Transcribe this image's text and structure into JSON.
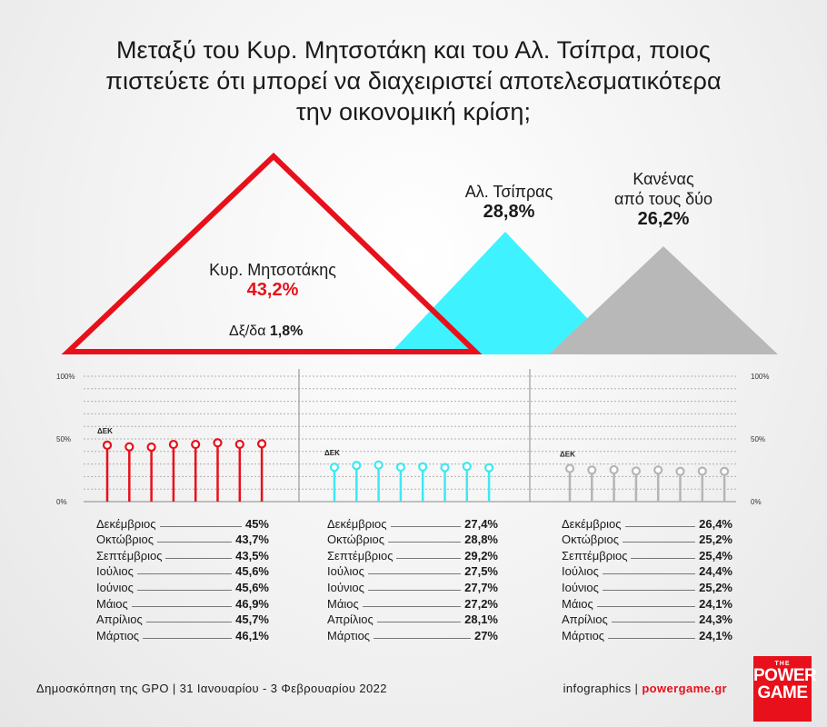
{
  "title_lines": [
    "Μεταξύ του Κυρ. Μητσοτάκη και του Αλ. Τσίπρα, ποιος",
    "πιστεύετε ότι μπορεί να διαχειριστεί αποτελεσματικότερα",
    "την οικονομική κρίση;"
  ],
  "summary": {
    "mitsotakis": {
      "label": "Κυρ. Μητσοτάκης",
      "value": "43,2%"
    },
    "tsipras": {
      "label": "Αλ. Τσίπρας",
      "value": "28,8%"
    },
    "none": {
      "label_line1": "Κανένας",
      "label_line2": "από τους δύο",
      "value": "26,2%"
    },
    "dk": {
      "label": "Δξ/δα",
      "value": "1,8%"
    }
  },
  "chart_data": {
    "type": "bar",
    "subtype": "lollipop-small-multiples",
    "categories": [
      "Δεκέμβριος",
      "Οκτώβριος",
      "Σεπτέμβριος",
      "Ιούλιος",
      "Ιούνιος",
      "Μάιος",
      "Απρίλιος",
      "Μάρτιος"
    ],
    "ylim": [
      0,
      100
    ],
    "y_ticks": [
      "0%",
      "50%",
      "100%"
    ],
    "first_point_label": "ΔΕΚ",
    "series": [
      {
        "color": "#e8101a",
        "values": [
          45,
          43.7,
          43.5,
          45.6,
          45.6,
          46.9,
          45.7,
          46.1
        ],
        "labels": [
          "45%",
          "43,7%",
          "43,5%",
          "45,6%",
          "45,6%",
          "46,9%",
          "45,7%",
          "46,1%"
        ]
      },
      {
        "color": "#3ee8f2",
        "values": [
          27.4,
          28.8,
          29.2,
          27.5,
          27.7,
          27.2,
          28.1,
          27
        ],
        "labels": [
          "27,4%",
          "28,8%",
          "29,2%",
          "27,5%",
          "27,7%",
          "27,2%",
          "28,1%",
          "27%"
        ]
      },
      {
        "color": "#b5b5b5",
        "values": [
          26.4,
          25.2,
          25.4,
          24.4,
          25.2,
          24.1,
          24.3,
          24.1
        ],
        "labels": [
          "26,4%",
          "25,2%",
          "25,4%",
          "24,4%",
          "25,2%",
          "24,1%",
          "24,3%",
          "24,1%"
        ]
      }
    ]
  },
  "footer": {
    "source": "Δημοσκόπηση της GPO | 31 Ιανουαρίου - 3 Φεβρουαρίου 2022",
    "credit_prefix": "infographics | ",
    "credit_site": "powergame.gr"
  },
  "logo": {
    "line1": "THE",
    "line2": "POWER",
    "line3": "GAME"
  }
}
